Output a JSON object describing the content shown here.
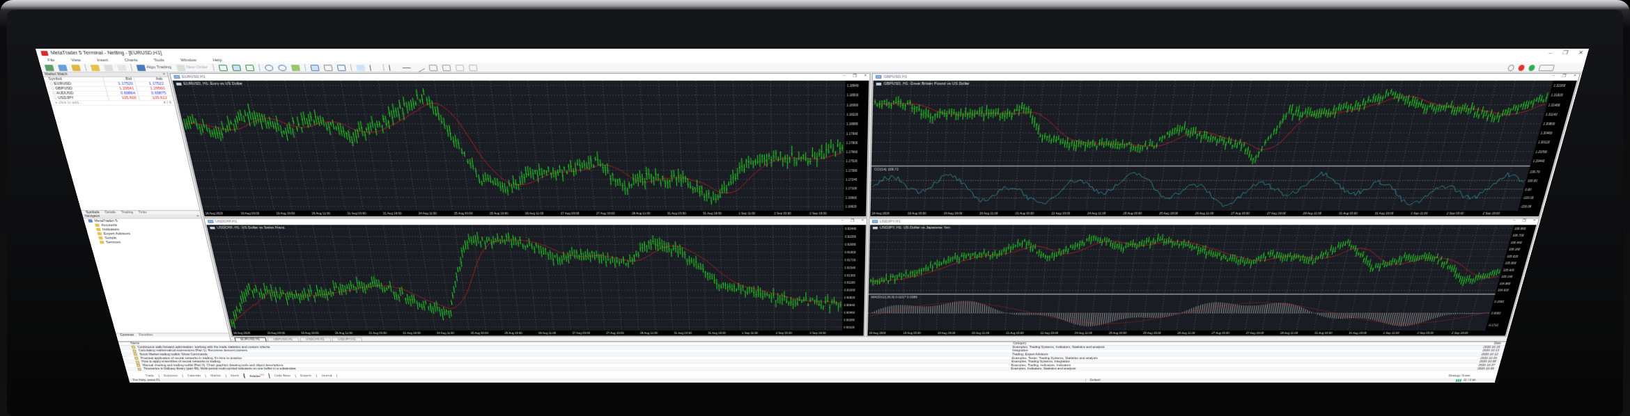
{
  "window": {
    "title": "MetaTrader 5 Terminal - Netting - [EURUSD,H1]",
    "controls": [
      "–",
      "❐",
      "✕"
    ]
  },
  "menu": [
    "File",
    "View",
    "Insert",
    "Charts",
    "Tools",
    "Window",
    "Help"
  ],
  "toolbar": {
    "algo_trading": "Algo Trading",
    "new_order": "New Order"
  },
  "market_watch": {
    "title": "Market Watch",
    "columns": [
      "Symbol",
      "Bid",
      "Ask"
    ],
    "rows": [
      {
        "symbol": "EURUSD",
        "bid": "1.17520",
        "ask": "1.17522",
        "color": "#2233cc"
      },
      {
        "symbol": "GBPUSD",
        "bid": "1.29541",
        "ask": "1.29560",
        "color": "#dd2222"
      },
      {
        "symbol": "AUDUSD",
        "bid": "0.69864",
        "ask": "0.69875",
        "color": "#2233cc"
      },
      {
        "symbol": "USDJPY",
        "bid": "105.600",
        "ask": "105.612",
        "color": "#dd2222"
      }
    ],
    "add_placeholder": "click to add...",
    "count": "4 / 4",
    "tabs": [
      "Symbols",
      "Details",
      "Trading",
      "Ticks"
    ]
  },
  "navigator": {
    "title": "Navigator",
    "items": [
      "MetaTrader 5",
      "Accounts",
      "Indicators",
      "Expert Advisors",
      "Scripts",
      "Services"
    ],
    "tabs": [
      "Common",
      "Favorites"
    ]
  },
  "charts": [
    {
      "tab": "EURUSD,H1",
      "label": "EURUSD, H1:  Euro vs US Dollar",
      "prices": [
        "1.18640",
        "1.18500",
        "1.18360",
        "1.18220",
        "1.18080",
        "1.17940",
        "1.17800",
        "1.17660",
        "1.17520",
        "1.17380",
        "1.17240",
        "1.17100",
        "1.16960",
        "1.16820"
      ]
    },
    {
      "tab": "GBPUSD,H1",
      "label": "GBPUSD, H1:  Great Britain Pound vs US Dollar",
      "prices": [
        "1.32160",
        "1.31820",
        "1.31480",
        "1.31140",
        "1.30800",
        "1.30460",
        "1.30120",
        "1.29780",
        "1.29440"
      ],
      "indicator": {
        "label": "CCI(14) 109.72",
        "levels": [
          "239.79",
          "100.00",
          "0.00",
          "-100.00",
          "-226.08"
        ]
      }
    },
    {
      "tab": "USDCHF,H1",
      "label": "USDCHF, H1:  US Dollar vs Swiss Franc",
      "prices": [
        "0.92440",
        "0.92260",
        "0.92080",
        "0.91900",
        "0.91720",
        "0.91540",
        "0.91360",
        "0.91180",
        "0.91000",
        "0.90820",
        "0.90640",
        "0.90460",
        "0.90280",
        "0.90100"
      ]
    },
    {
      "tab": "USDJPY,H1",
      "label": "USDJPY, H1:  US Dollar vs Japanese Yen",
      "prices": [
        "106.960",
        "106.700",
        "106.440",
        "106.180",
        "105.920",
        "105.660",
        "105.400",
        "105.140",
        "104.880",
        "104.620"
      ],
      "indicator": {
        "label": "MACD(12,26,9) 0.0217 0.0389",
        "levels": [
          "0.1593",
          "0.0000",
          "-0.1712"
        ]
      }
    }
  ],
  "time_labels": [
    "18 Aug 2020",
    "19 Aug 03:00",
    "19 Aug 19:00",
    "20 Aug 11:00",
    "21 Aug 03:00",
    "21 Aug 19:00",
    "24 Aug 11:00",
    "25 Aug 03:00",
    "25 Aug 19:00",
    "26 Aug 11:00",
    "27 Aug 03:00",
    "27 Aug 19:00",
    "28 Aug 11:00",
    "31 Aug 03:00",
    "31 Aug 19:00",
    "1 Sep 11:00",
    "2 Sep 03:00",
    "2 Sep 19:00"
  ],
  "colors": {
    "bull": "#22e022",
    "ma": "#d02020",
    "cci": "#2aa0a8",
    "grid": "#6a6e78",
    "chart_bg": "#1a1c23"
  },
  "toolbox": {
    "columns": [
      "Name",
      "Category",
      "Date"
    ],
    "articles": [
      {
        "name": "Continuous walk-forward optimization: working with the trade statistics and custom criteria",
        "category": "Examples, Trading Systems, Indicators, Statistics and analysis",
        "date": "2020.10.15"
      },
      {
        "name": "Calculating mathematical expressions (Part 1). Recursive descent parsers",
        "category": "Integration",
        "date": "2020.10.13"
      },
      {
        "name": "Stock Market trading toolkit: Show Commands",
        "category": "Trading, Expert Advisors",
        "date": "2020.10.12"
      },
      {
        "name": "Practical application of neural networks in trading. It's time to practice",
        "category": "Examples, Tester, Trading Systems, Statistics and analysis",
        "date": "2020.10.09"
      },
      {
        "name": "How to apply ensembles of neural networks to trading",
        "category": "Examples, Trading Systems, Integration",
        "date": "2020.10.08"
      },
      {
        "name": "Manual charting and trading toolkit (Part II). Chart graphics drawing tools and object descriptions",
        "category": "Examples, Trading, Indicators, Indicators",
        "date": "2020.10.07"
      },
      {
        "name": "Timeseries in DoEasy library (part 48): Multi-period multi-symbol indicators on one buffer in a subwindow",
        "category": "Examples, Indicators, Statistics and analysis",
        "date": "2020.10.06"
      }
    ],
    "tabs": [
      "Trade",
      "Exposure",
      "Calendar",
      "Market",
      "Alerts",
      "Articles",
      "Code Base",
      "Experts",
      "Journal"
    ],
    "active_tab": 5,
    "articles_badge": "115",
    "strategy_tester": "Strategy Tester"
  },
  "status": {
    "help": "For Help, press F1",
    "profile": "Default",
    "connection": "11 / 0 kb"
  }
}
